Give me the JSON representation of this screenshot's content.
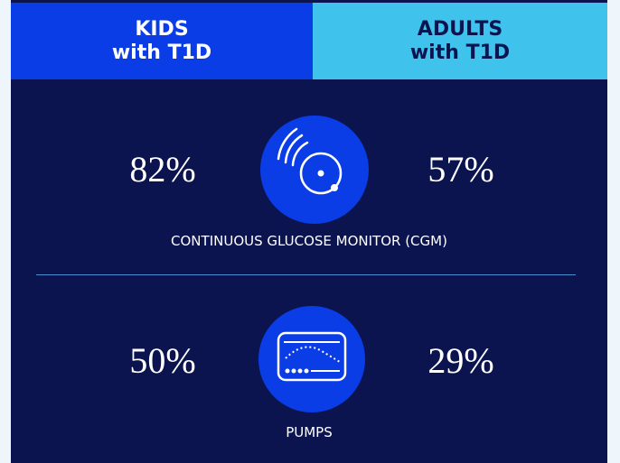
{
  "header": {
    "kids_line1": "KIDS",
    "kids_line2": "with T1D",
    "adults_line1": "ADULTS",
    "adults_line2": "with T1D"
  },
  "rows": [
    {
      "kids": "82%",
      "adults": "57%",
      "label": "CONTINUOUS GLUCOSE MONITOR (CGM)"
    },
    {
      "kids": "50%",
      "adults": "29%",
      "label": "PUMPS"
    }
  ]
}
